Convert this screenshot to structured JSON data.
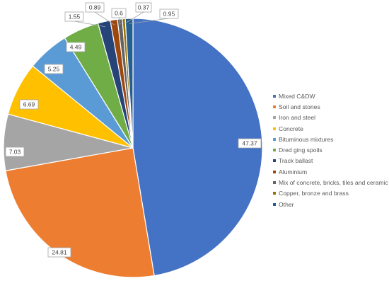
{
  "chart_data": {
    "type": "pie",
    "title": "",
    "start_angle_deg": 0,
    "direction": "clockwise",
    "legend_position": "right",
    "data_labels": "outside-callout",
    "categories": [
      "Mixed C&DW",
      "Soil and stones",
      "Iron and steel",
      "Concrete",
      "Bituminous mixtures",
      "Dred ging spoils",
      "Track ballast",
      "Aluminium",
      "Mix of concrete, bricks, tiles and ceramic",
      "Copper, bronze and brass",
      "Other"
    ],
    "values": [
      47.37,
      24.81,
      7.03,
      6.69,
      5.25,
      4.49,
      1.55,
      0.89,
      0.6,
      0.37,
      0.95
    ],
    "labels": [
      "47.37",
      "24.81",
      "7.03",
      "6.69",
      "5.25",
      "4.49",
      "1.55",
      "0.89",
      "0.6",
      "0.37",
      "0.95"
    ],
    "colors": [
      "#4472C4",
      "#ED7D31",
      "#A5A5A5",
      "#FFC000",
      "#5B9BD5",
      "#70AD47",
      "#264478",
      "#9E480E",
      "#636363",
      "#997300",
      "#255E91"
    ]
  }
}
